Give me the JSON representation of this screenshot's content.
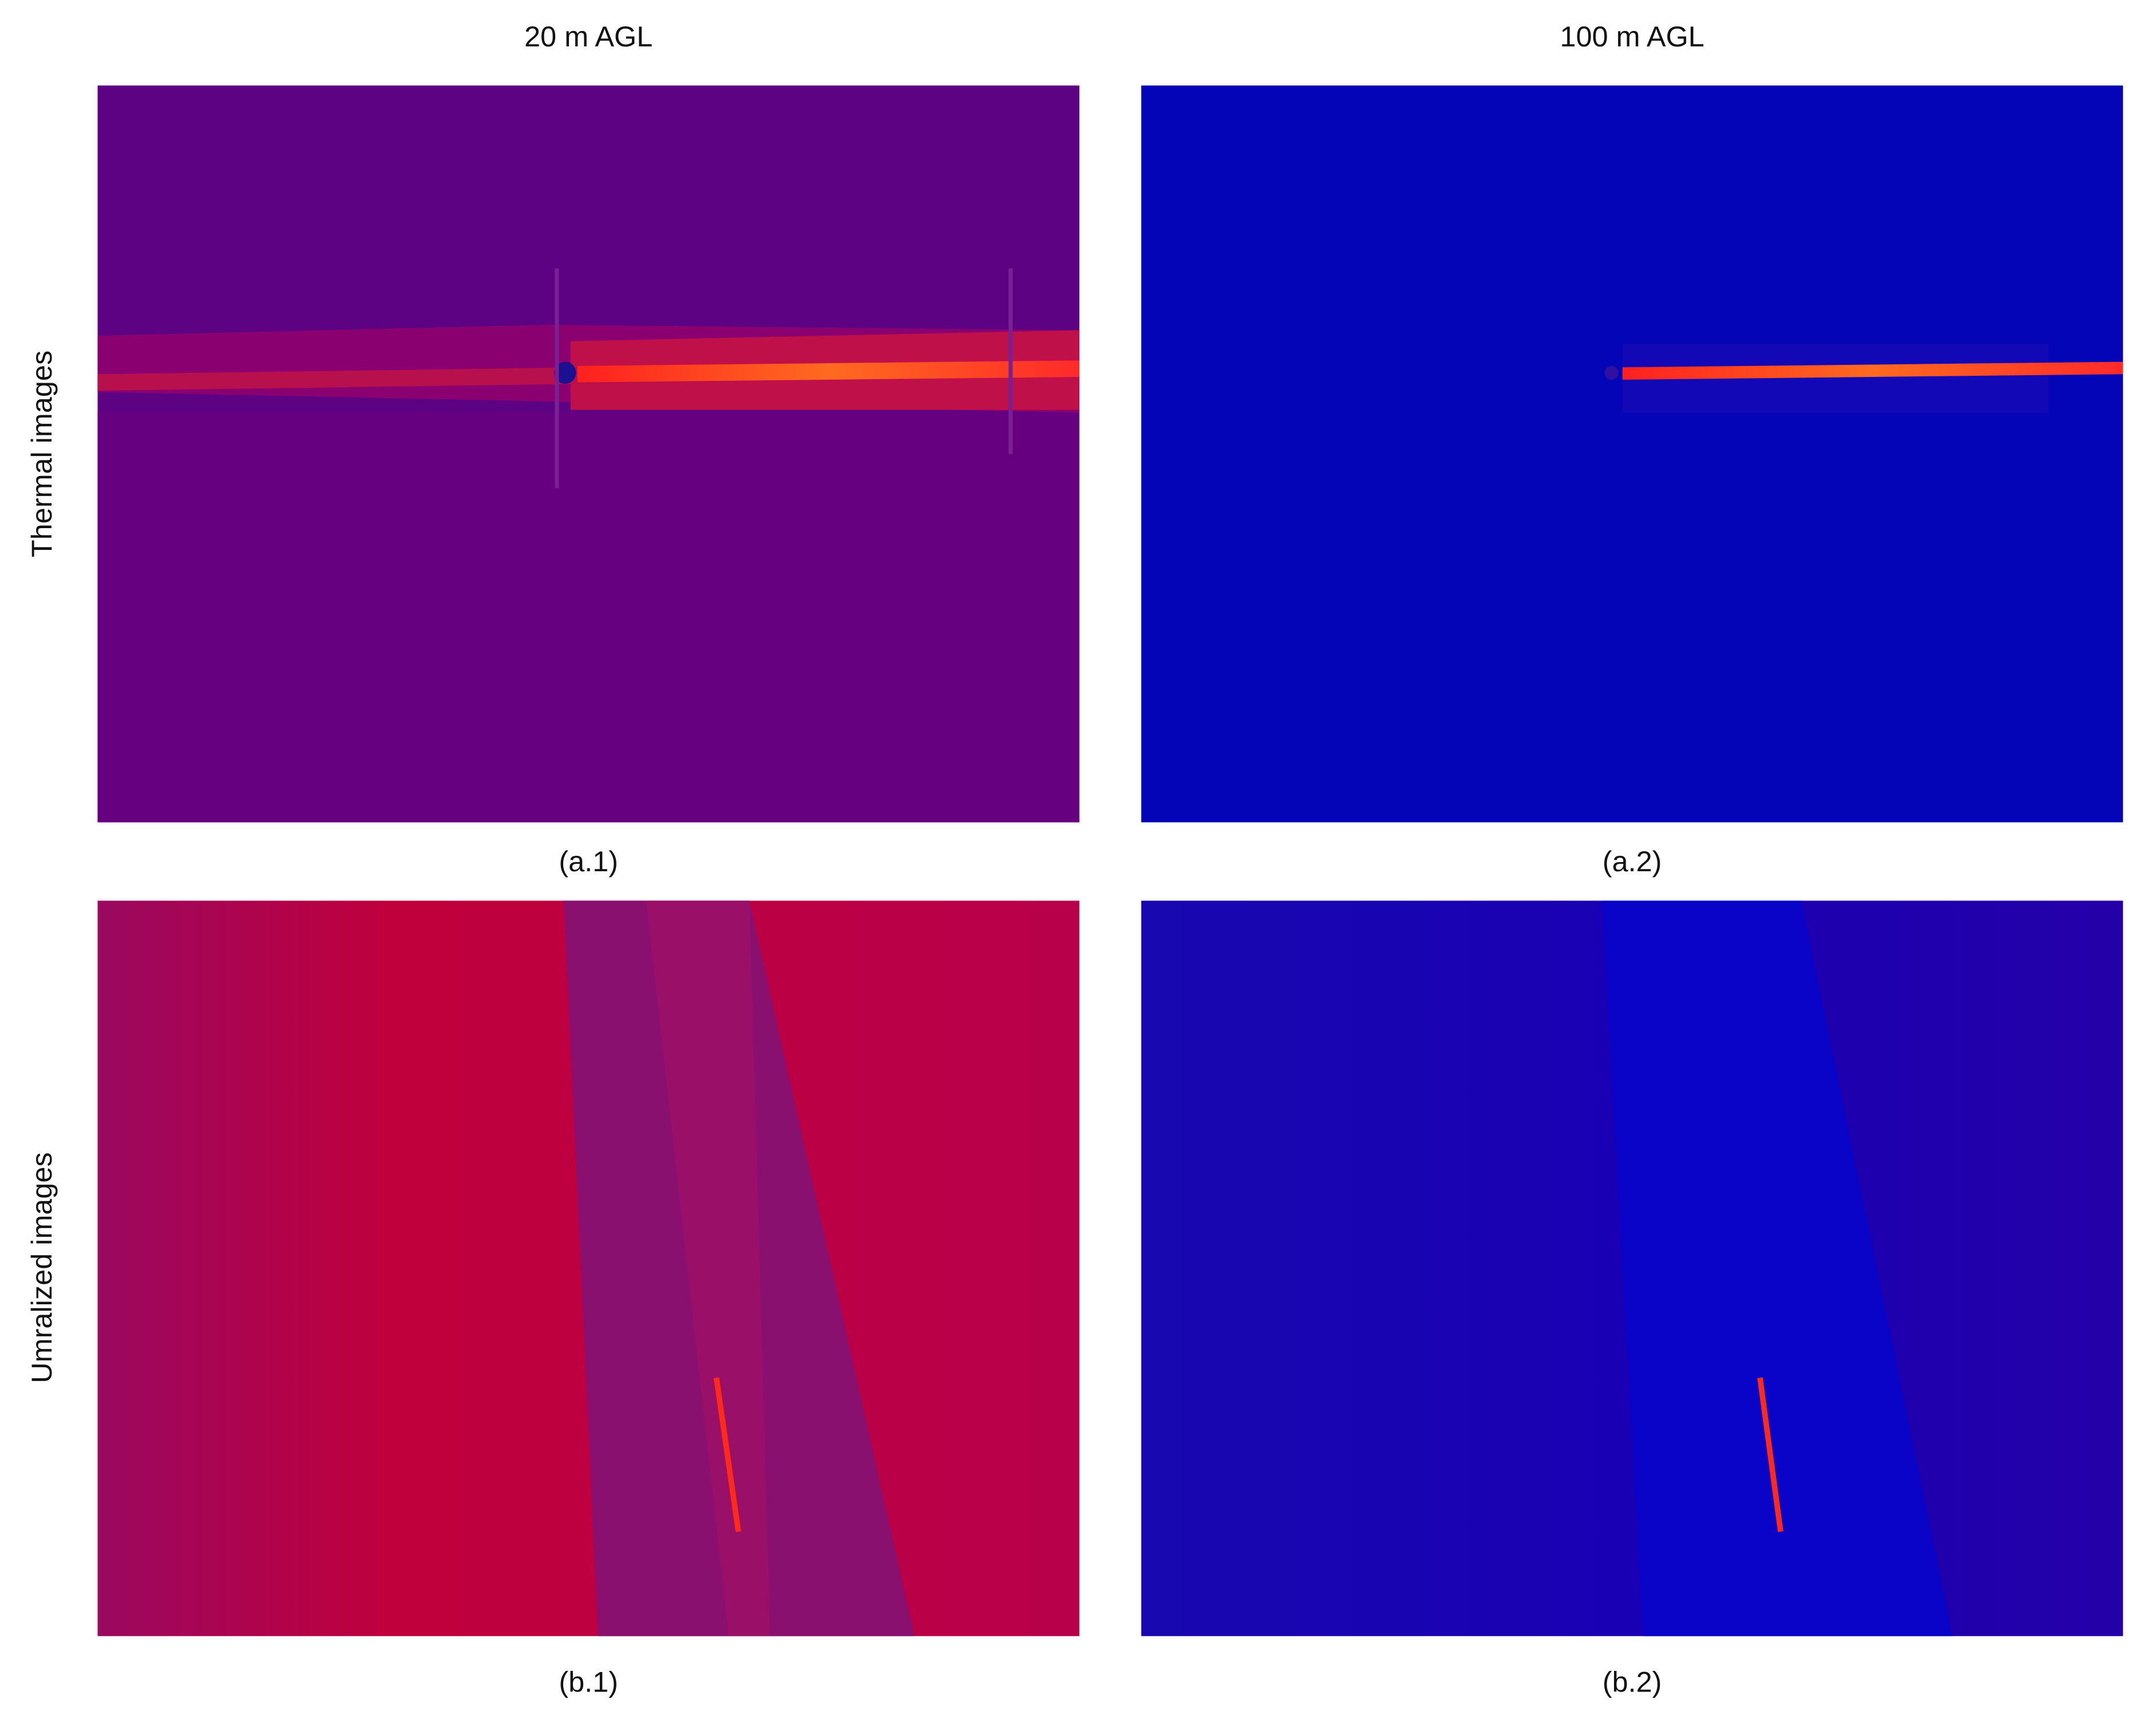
{
  "column_headers": [
    "20 m AGL",
    "100 m AGL"
  ],
  "row_labels": [
    "Thermal images",
    "Umralized images"
  ],
  "captions": [
    "(a.1)",
    "(a.2)",
    "(b.1)",
    "(b.2)"
  ]
}
